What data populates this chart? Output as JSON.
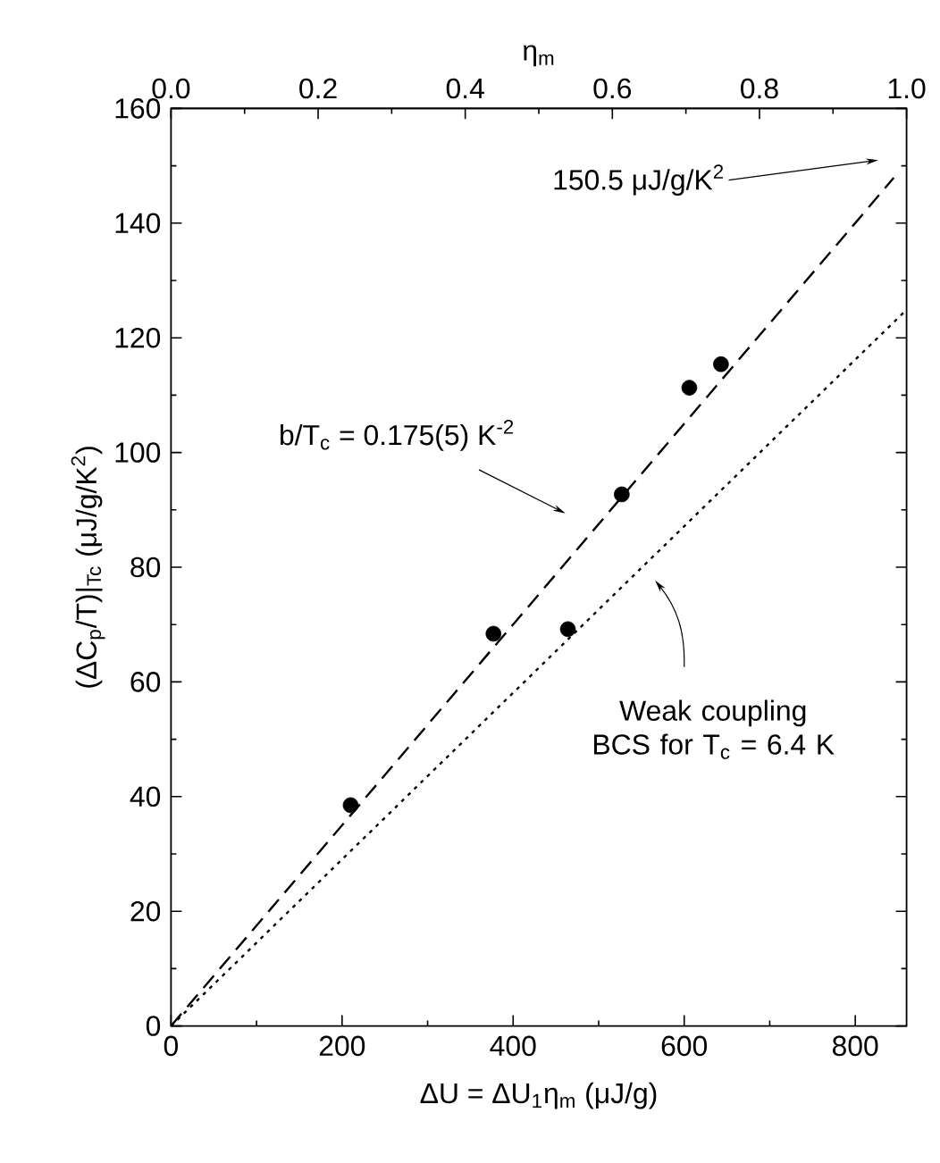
{
  "chart_data": {
    "type": "scatter",
    "xlabel": "ΔU = ΔU$_{1}$η$_{m}$ (μJ/g)",
    "ylabel": "(ΔC$_{p}$/T)|$_{Tc}$ (μJ/g/K$^{2}$)",
    "x2label": "η$_{m}$",
    "xlim": [
      0,
      860
    ],
    "xticks": [
      0,
      200,
      400,
      600,
      800
    ],
    "x2lim": [
      0,
      1.0
    ],
    "x2ticks": [
      {
        "value": 0,
        "label": "0.0"
      },
      {
        "value": 0.2,
        "label": "0.2"
      },
      {
        "value": 0.4,
        "label": "0.4"
      },
      {
        "value": 0.6,
        "label": "0.6"
      },
      {
        "value": 0.8,
        "label": "0.8"
      },
      {
        "value": 1.0,
        "label": "1.0"
      }
    ],
    "ylim": [
      0,
      160
    ],
    "yticks": [
      0,
      20,
      40,
      60,
      80,
      100,
      120,
      140,
      160
    ],
    "series": [
      {
        "marker": "circle",
        "color": "#000000",
        "x": [
          210,
          377,
          464,
          527,
          606,
          643
        ],
        "values": [
          38.5,
          68.4,
          69.2,
          92.7,
          111.3,
          115.4
        ]
      },
      {
        "type": "line",
        "line_style": "dashed",
        "marker": "none",
        "color": "#000000",
        "x": [
          0,
          845
        ],
        "values": [
          0,
          147.9
        ]
      },
      {
        "type": "line",
        "line_style": "dotted",
        "marker": "none",
        "color": "#000000",
        "x": [
          0,
          860
        ],
        "values": [
          0,
          124.9
        ]
      }
    ],
    "annotations": [
      "150.5 μJ/g/K$^{2}$",
      "b/T$_{c}$ = 0.175(5) K$^{-2}$",
      "Weak coupling BCS for T$_{c}$ = 6.4 K"
    ]
  }
}
